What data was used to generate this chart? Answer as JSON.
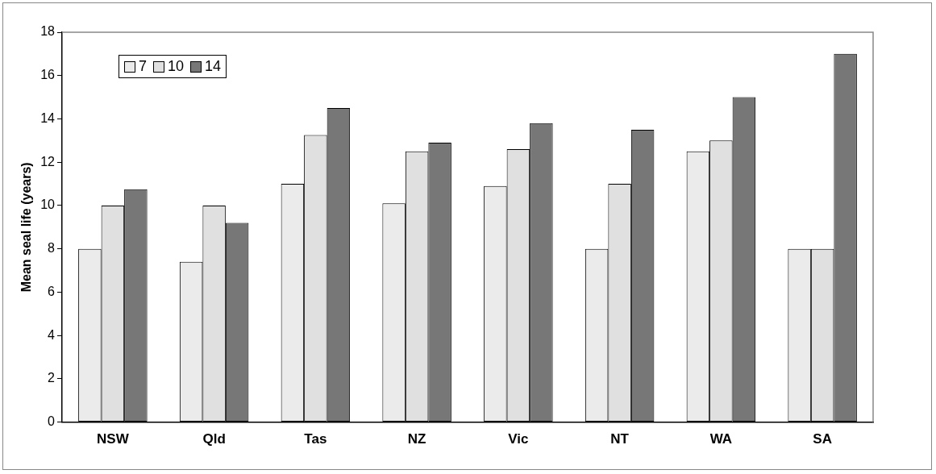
{
  "chart_data": {
    "type": "bar",
    "ylabel": "Mean seal life (years)",
    "categories": [
      "NSW",
      "Qld",
      "Tas",
      "NZ",
      "Vic",
      "NT",
      "WA",
      "SA"
    ],
    "series": [
      {
        "name": "7",
        "color": "#ebebeb",
        "values": [
          8,
          7.4,
          11,
          10.1,
          10.9,
          8,
          12.5,
          8
        ]
      },
      {
        "name": "10",
        "color": "#e0e0e0",
        "values": [
          10,
          10,
          13.25,
          12.5,
          12.6,
          11,
          13,
          8
        ]
      },
      {
        "name": "14",
        "color": "#777777",
        "values": [
          10.75,
          9.2,
          14.5,
          12.9,
          13.8,
          13.5,
          15,
          17
        ]
      }
    ],
    "ylim": [
      0,
      18
    ],
    "yticks": [
      0,
      2,
      4,
      6,
      8,
      10,
      12,
      14,
      16,
      18
    ],
    "grid": false,
    "legend": "top left"
  }
}
